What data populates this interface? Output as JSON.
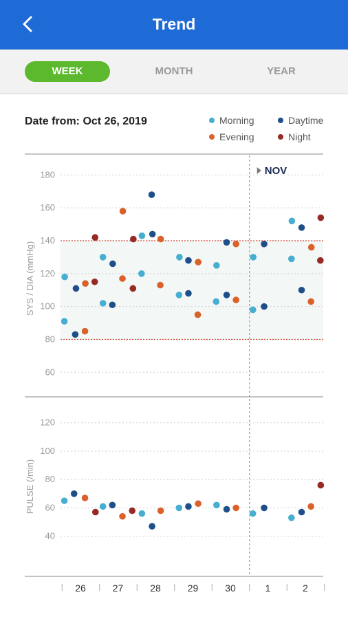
{
  "header": {
    "title": "Trend"
  },
  "tabs": [
    {
      "label": "WEEK",
      "active": true
    },
    {
      "label": "MONTH",
      "active": false
    },
    {
      "label": "YEAR",
      "active": false
    }
  ],
  "date_range": "Date from: Oct 26, 2019",
  "legend": [
    {
      "label": "Morning",
      "color": "#46aed0"
    },
    {
      "label": "Daytime",
      "color": "#1f4f8a"
    },
    {
      "label": "Evening",
      "color": "#d9622b"
    },
    {
      "label": "Night",
      "color": "#962a25"
    }
  ],
  "chart_data": [
    {
      "type": "scatter",
      "ylabel": "SYS / DIA  (mmHg)",
      "yticks": [
        60,
        80,
        100,
        120,
        140,
        160,
        180
      ],
      "ylim": [
        48,
        186
      ],
      "reference_lines": [
        80,
        140
      ],
      "normal_band": [
        80,
        140
      ],
      "x_categories": [
        "26",
        "27",
        "28",
        "29",
        "30",
        "1",
        "2"
      ],
      "month_marker": {
        "label": "NOV",
        "at": "1"
      },
      "grid": true,
      "series": [
        {
          "name": "Morning",
          "points": [
            {
              "x": 0.07,
              "y": 91
            },
            {
              "x": 0.08,
              "y": 118
            },
            {
              "x": 1.1,
              "y": 102
            },
            {
              "x": 1.1,
              "y": 130
            },
            {
              "x": 2.13,
              "y": 120
            },
            {
              "x": 2.14,
              "y": 143
            },
            {
              "x": 3.13,
              "y": 107
            },
            {
              "x": 3.14,
              "y": 130
            },
            {
              "x": 4.12,
              "y": 103
            },
            {
              "x": 4.13,
              "y": 125
            },
            {
              "x": 5.1,
              "y": 98
            },
            {
              "x": 5.11,
              "y": 130
            },
            {
              "x": 6.13,
              "y": 129
            },
            {
              "x": 6.14,
              "y": 152
            }
          ]
        },
        {
          "name": "Daytime",
          "points": [
            {
              "x": 0.36,
              "y": 83
            },
            {
              "x": 0.38,
              "y": 111
            },
            {
              "x": 1.35,
              "y": 101
            },
            {
              "x": 1.36,
              "y": 126
            },
            {
              "x": 2.4,
              "y": 168
            },
            {
              "x": 2.42,
              "y": 144
            },
            {
              "x": 3.38,
              "y": 108
            },
            {
              "x": 3.38,
              "y": 128
            },
            {
              "x": 4.4,
              "y": 107
            },
            {
              "x": 4.4,
              "y": 139
            },
            {
              "x": 5.4,
              "y": 100
            },
            {
              "x": 5.4,
              "y": 138
            },
            {
              "x": 6.4,
              "y": 110
            },
            {
              "x": 6.4,
              "y": 148
            }
          ]
        },
        {
          "name": "Evening",
          "points": [
            {
              "x": 0.62,
              "y": 85
            },
            {
              "x": 0.63,
              "y": 114
            },
            {
              "x": 1.62,
              "y": 117
            },
            {
              "x": 1.63,
              "y": 158
            },
            {
              "x": 2.63,
              "y": 113
            },
            {
              "x": 2.64,
              "y": 141
            },
            {
              "x": 3.63,
              "y": 95
            },
            {
              "x": 3.64,
              "y": 127
            },
            {
              "x": 4.65,
              "y": 104
            },
            {
              "x": 4.65,
              "y": 138
            },
            {
              "x": 6.65,
              "y": 103
            },
            {
              "x": 6.66,
              "y": 136
            }
          ]
        },
        {
          "name": "Night",
          "points": [
            {
              "x": 0.88,
              "y": 115
            },
            {
              "x": 0.89,
              "y": 142
            },
            {
              "x": 1.9,
              "y": 111
            },
            {
              "x": 1.91,
              "y": 141
            },
            {
              "x": 6.9,
              "y": 128
            },
            {
              "x": 6.91,
              "y": 154
            }
          ]
        }
      ]
    },
    {
      "type": "scatter",
      "ylabel": "PULSE  (/min)",
      "yticks": [
        40,
        60,
        80,
        100,
        120
      ],
      "ylim": [
        18,
        132
      ],
      "x_categories": [
        "26",
        "27",
        "28",
        "29",
        "30",
        "1",
        "2"
      ],
      "grid": true,
      "series": [
        {
          "name": "Morning",
          "points": [
            {
              "x": 0.07,
              "y": 65
            },
            {
              "x": 1.1,
              "y": 61
            },
            {
              "x": 2.14,
              "y": 56
            },
            {
              "x": 3.13,
              "y": 60
            },
            {
              "x": 4.13,
              "y": 62
            },
            {
              "x": 5.1,
              "y": 56
            },
            {
              "x": 6.13,
              "y": 53
            }
          ]
        },
        {
          "name": "Daytime",
          "points": [
            {
              "x": 0.33,
              "y": 70
            },
            {
              "x": 1.35,
              "y": 62
            },
            {
              "x": 2.41,
              "y": 47
            },
            {
              "x": 3.38,
              "y": 61
            },
            {
              "x": 4.4,
              "y": 59
            },
            {
              "x": 5.4,
              "y": 60
            },
            {
              "x": 6.4,
              "y": 57
            }
          ]
        },
        {
          "name": "Evening",
          "points": [
            {
              "x": 0.62,
              "y": 67
            },
            {
              "x": 1.62,
              "y": 54
            },
            {
              "x": 2.64,
              "y": 58
            },
            {
              "x": 3.64,
              "y": 63
            },
            {
              "x": 4.65,
              "y": 60
            },
            {
              "x": 6.65,
              "y": 61
            }
          ]
        },
        {
          "name": "Night",
          "points": [
            {
              "x": 0.9,
              "y": 57
            },
            {
              "x": 1.88,
              "y": 58
            },
            {
              "x": 6.91,
              "y": 76
            }
          ]
        }
      ]
    }
  ]
}
